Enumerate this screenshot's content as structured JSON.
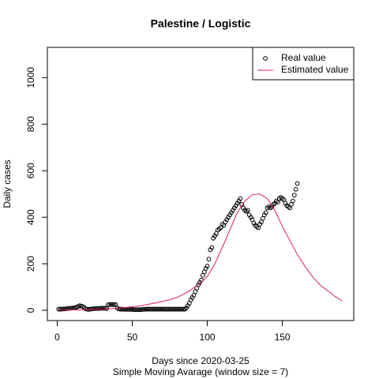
{
  "chart_data": {
    "type": "scatter",
    "title": "Palestine / Logistic",
    "xlabel": "Days since 2020-03-25",
    "subtitle": "Simple Moving Avarage (window size = 7)",
    "ylabel": "Daily cases",
    "xlim": [
      -6.56,
      197.56
    ],
    "xticks": [
      0,
      50,
      100,
      150
    ],
    "ylim": [
      -44,
      1130
    ],
    "yticks": [
      0,
      200,
      400,
      600,
      800,
      1000
    ],
    "legend": "topright",
    "series": [
      {
        "name": "Real value",
        "color": "#000000",
        "style": "points",
        "x": [
          1,
          2,
          3,
          4,
          5,
          6,
          7,
          8,
          9,
          10,
          11,
          12,
          13,
          14,
          15,
          16,
          17,
          18,
          19,
          20,
          21,
          22,
          23,
          24,
          25,
          26,
          27,
          28,
          29,
          30,
          31,
          32,
          33,
          34,
          35,
          36,
          37,
          38,
          39,
          40,
          41,
          42,
          43,
          44,
          45,
          46,
          47,
          48,
          49,
          50,
          51,
          52,
          53,
          54,
          55,
          56,
          57,
          58,
          59,
          60,
          61,
          62,
          63,
          64,
          65,
          66,
          67,
          68,
          69,
          70,
          71,
          72,
          73,
          74,
          75,
          76,
          77,
          78,
          79,
          80,
          81,
          82,
          83,
          84,
          85,
          86,
          87,
          88,
          89,
          90,
          91,
          92,
          93,
          94,
          95,
          96,
          97,
          98,
          99,
          100,
          101,
          102,
          103,
          104,
          105,
          106,
          107,
          108,
          109,
          110,
          111,
          112,
          113,
          114,
          115,
          116,
          117,
          118,
          119,
          120,
          121,
          122,
          123,
          124,
          125,
          126,
          127,
          128,
          129,
          130,
          131,
          132,
          133,
          134,
          135,
          136,
          137,
          138,
          139,
          140,
          141,
          142,
          143,
          144,
          145,
          146,
          147,
          148,
          149,
          150,
          151,
          152,
          153,
          154,
          155,
          156,
          157,
          158,
          159,
          160
        ],
        "values": [
          5,
          5,
          5,
          6,
          6,
          7,
          8,
          8,
          9,
          10,
          10,
          12,
          14,
          17,
          20,
          18,
          16,
          12,
          6,
          5,
          4,
          5,
          6,
          7,
          7,
          8,
          8,
          8,
          9,
          9,
          9,
          9,
          8,
          24,
          25,
          25,
          25,
          25,
          24,
          10,
          6,
          5,
          5,
          5,
          4,
          4,
          4,
          4,
          4,
          4,
          3,
          3,
          3,
          3,
          3,
          3,
          4,
          4,
          5,
          5,
          5,
          5,
          5,
          5,
          5,
          5,
          5,
          5,
          5,
          5,
          5,
          5,
          5,
          5,
          5,
          5,
          5,
          5,
          5,
          5,
          5,
          5,
          5,
          5,
          5,
          10,
          20,
          30,
          45,
          55,
          65,
          80,
          95,
          110,
          120,
          130,
          150,
          165,
          180,
          190,
          220,
          260,
          270,
          310,
          320,
          330,
          345,
          350,
          355,
          370,
          365,
          380,
          390,
          400,
          410,
          420,
          430,
          440,
          450,
          460,
          470,
          480,
          455,
          440,
          430,
          425,
          430,
          410,
          400,
          390,
          375,
          365,
          360,
          355,
          370,
          380,
          395,
          410,
          420,
          440,
          445,
          440,
          445,
          455,
          460,
          470,
          465,
          480,
          485,
          480,
          475,
          460,
          450,
          445,
          440,
          455,
          470,
          495,
          520,
          545
        ]
      },
      {
        "name": "Estimated value",
        "color": "#df2050",
        "style": "line",
        "x": [
          1,
          5,
          10,
          15,
          20,
          25,
          30,
          35,
          40,
          45,
          50,
          55,
          60,
          65,
          70,
          75,
          80,
          85,
          90,
          95,
          100,
          105,
          110,
          115,
          120,
          125,
          130,
          135,
          140,
          145,
          150,
          155,
          160,
          165,
          170,
          175,
          180,
          185,
          190
        ],
        "values": [
          1,
          1,
          2,
          2,
          3,
          4,
          5,
          7,
          9,
          12,
          15,
          19,
          25,
          31,
          38,
          46,
          56,
          72,
          92,
          115,
          145,
          200,
          270,
          345,
          420,
          470,
          497,
          500,
          480,
          430,
          360,
          300,
          240,
          190,
          145,
          110,
          85,
          60,
          40
        ]
      }
    ]
  }
}
